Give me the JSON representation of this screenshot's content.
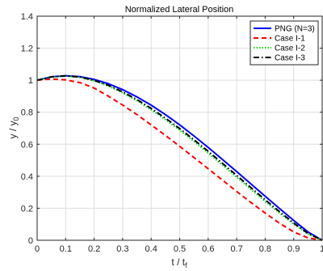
{
  "chart_data": {
    "type": "line",
    "title": "Normalized Lateral Position",
    "xlabel": "t / t",
    "xlabel_sub": "f",
    "ylabel": "y / y",
    "ylabel_sub": "0",
    "xlim": [
      0,
      1
    ],
    "ylim": [
      0,
      1.4
    ],
    "xticks": [
      0,
      0.1,
      0.2,
      0.3,
      0.4,
      0.5,
      0.6,
      0.7,
      0.8,
      0.9,
      1
    ],
    "xtick_labels": [
      "0",
      "0.1",
      "0.2",
      "0.3",
      "0.4",
      "0.5",
      "0.6",
      "0.7",
      "0.8",
      "0.9",
      "1"
    ],
    "yticks": [
      0,
      0.2,
      0.4,
      0.6,
      0.8,
      1,
      1.2,
      1.4
    ],
    "ytick_labels": [
      "0",
      "0.2",
      "0.4",
      "0.6",
      "0.8",
      "1",
      "1.2",
      "1.4"
    ],
    "grid": true,
    "legend_position": "top-right",
    "x": [
      0,
      0.05,
      0.1,
      0.15,
      0.2,
      0.25,
      0.3,
      0.35,
      0.4,
      0.45,
      0.5,
      0.55,
      0.6,
      0.65,
      0.7,
      0.75,
      0.8,
      0.85,
      0.9,
      0.95,
      1
    ],
    "series": [
      {
        "name": "PNG (N=3)",
        "color": "#0000ff",
        "dash": "solid",
        "values": [
          1.0,
          1.021,
          1.028,
          1.022,
          1.005,
          0.978,
          0.941,
          0.896,
          0.844,
          0.785,
          0.721,
          0.652,
          0.58,
          0.505,
          0.429,
          0.352,
          0.275,
          0.199,
          0.124,
          0.052,
          0.0
        ]
      },
      {
        "name": "Case I-1",
        "color": "#ff0000",
        "dash": "dashed",
        "values": [
          1.0,
          1.008,
          1.002,
          0.985,
          0.951,
          0.9,
          0.845,
          0.785,
          0.721,
          0.655,
          0.587,
          0.517,
          0.447,
          0.376,
          0.305,
          0.236,
          0.17,
          0.107,
          0.052,
          0.015,
          0.0
        ]
      },
      {
        "name": "Case I-2",
        "color": "#00dd00",
        "dash": "dotted",
        "values": [
          1.0,
          1.02,
          1.026,
          1.018,
          0.996,
          0.964,
          0.921,
          0.872,
          0.816,
          0.754,
          0.688,
          0.618,
          0.545,
          0.47,
          0.394,
          0.318,
          0.243,
          0.17,
          0.101,
          0.04,
          0.0
        ]
      },
      {
        "name": "Case I-3",
        "color": "#000000",
        "dash": "dashdot",
        "values": [
          1.0,
          1.021,
          1.027,
          1.02,
          0.999,
          0.968,
          0.927,
          0.879,
          0.824,
          0.763,
          0.698,
          0.628,
          0.556,
          0.481,
          0.405,
          0.329,
          0.253,
          0.179,
          0.108,
          0.043,
          0.0
        ]
      }
    ]
  }
}
